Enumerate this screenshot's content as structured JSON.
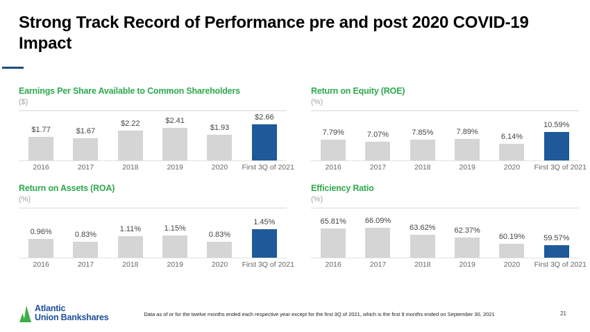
{
  "slide": {
    "title": "Strong Track Record of Performance pre and post 2020 COVID-19 Impact",
    "footnote": "Data as of or for the twelve months ended each respective year except for the first 3Q of 2021, which is the first 9 months ended on September 30, 2021",
    "page_number": "21"
  },
  "logo": {
    "line1": "Atlantic",
    "line2": "Union Bankshares",
    "mark": "green-sail-icon"
  },
  "colors": {
    "accent_green": "#2EA94D",
    "highlight_blue": "#1E5A9A",
    "bar_gray": "#D5D5D5",
    "underline_blue": "#1F4E79",
    "logo_blue": "#1C4F9C",
    "logo_green": "#3CAE49"
  },
  "chart_data": [
    {
      "type": "bar",
      "title": "Earnings Per Share Available to Common Shareholders",
      "unit": "($)",
      "categories": [
        "2016",
        "2017",
        "2018",
        "2019",
        "2020",
        "First 3Q of 2021"
      ],
      "values": [
        1.77,
        1.67,
        2.22,
        2.41,
        1.93,
        2.66
      ],
      "labels": [
        "$1.77",
        "$1.67",
        "$2.22",
        "$2.41",
        "$1.93",
        "$2.66"
      ],
      "ylim": [
        0,
        3.2
      ],
      "grid": false,
      "highlight_index": 5
    },
    {
      "type": "bar",
      "title": "Return on Equity (ROE)",
      "unit": "(%)",
      "categories": [
        "2016",
        "2017",
        "2018",
        "2019",
        "2020",
        "First 3Q of 2021"
      ],
      "values": [
        7.79,
        7.07,
        7.85,
        7.89,
        6.14,
        10.59
      ],
      "labels": [
        "7.79%",
        "7.07%",
        "7.85%",
        "7.89%",
        "6.14%",
        "10.59%"
      ],
      "ylim": [
        0,
        16
      ],
      "grid": false,
      "highlight_index": 5
    },
    {
      "type": "bar",
      "title": "Return on Assets (ROA)",
      "unit": "(%)",
      "categories": [
        "2016",
        "2017",
        "2018",
        "2019",
        "2020",
        "First 3Q of 2021"
      ],
      "values": [
        0.96,
        0.83,
        1.11,
        1.15,
        0.83,
        1.45
      ],
      "labels": [
        "0.96%",
        "0.83%",
        "1.11%",
        "1.15%",
        "0.83%",
        "1.45%"
      ],
      "ylim": [
        0,
        2.2
      ],
      "grid": false,
      "highlight_index": 5
    },
    {
      "type": "bar",
      "title": "Efficiency Ratio",
      "unit": "(%)",
      "categories": [
        "2016",
        "2017",
        "2018",
        "2019",
        "2020",
        "First 3Q of 2021"
      ],
      "values": [
        65.81,
        66.09,
        63.62,
        62.37,
        60.19,
        59.57
      ],
      "labels": [
        "65.81%",
        "66.09%",
        "63.62%",
        "62.37%",
        "60.19%",
        "59.57%"
      ],
      "ylim": [
        55,
        71
      ],
      "grid": false,
      "highlight_index": 5
    }
  ]
}
